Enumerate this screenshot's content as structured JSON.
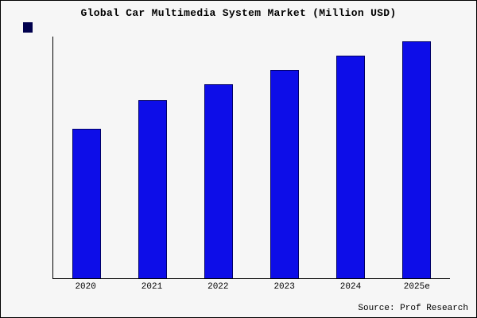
{
  "title": "Global Car Multimedia System Market (Million USD)",
  "source": "Source: Prof Research",
  "colors": {
    "background": "#f6f6f6",
    "bar_fill": "#0d0de8",
    "bar_border": "#000066",
    "legend_swatch": "#00004d",
    "axis": "#000000"
  },
  "chart_data": {
    "type": "bar",
    "title": "Global Car Multimedia System Market (Million USD)",
    "categories": [
      "2020",
      "2021",
      "2022",
      "2023",
      "2024",
      "2025e"
    ],
    "values": [
      63,
      75,
      82,
      88,
      94,
      100
    ],
    "xlabel": "",
    "ylabel": "",
    "ylim": [
      0,
      102
    ],
    "grid": false,
    "legend_position": "top-left-swatch-only",
    "annotations": [
      "Source: Prof Research"
    ]
  }
}
